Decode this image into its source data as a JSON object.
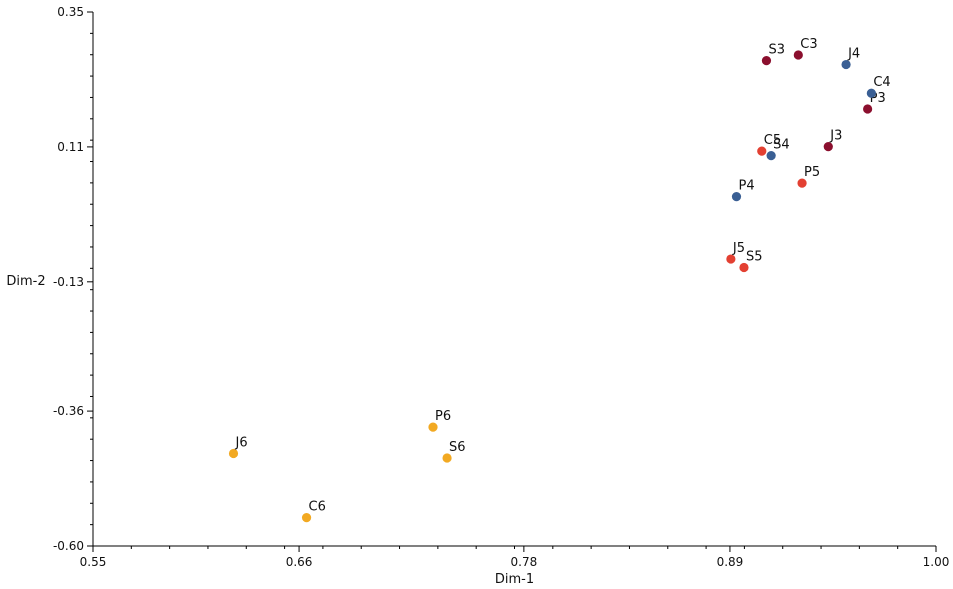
{
  "chart_data": {
    "type": "scatter",
    "title": "",
    "xlabel": "Dim-1",
    "ylabel": "Dim-2",
    "xlim": [
      0.55,
      1.0
    ],
    "ylim": [
      -0.6,
      0.35
    ],
    "x_ticks": [
      "0.55",
      "0.66",
      "0.78",
      "0.89",
      "1.00"
    ],
    "x_tick_values": [
      0.55,
      0.66,
      0.78,
      0.89,
      1.0
    ],
    "y_ticks": [
      "0.35",
      "0.11",
      "-0.13",
      "-0.36",
      "-0.60"
    ],
    "y_tick_values": [
      0.35,
      0.11,
      -0.13,
      -0.36,
      -0.6
    ],
    "colors": {
      "group3": "#8b0f2e",
      "group4": "#3a5f94",
      "group5": "#e34032",
      "group6": "#f2a922"
    },
    "points": [
      {
        "label": "S3",
        "x": 0.9095,
        "y": 0.2635,
        "group": "group3"
      },
      {
        "label": "C3",
        "x": 0.9265,
        "y": 0.2735,
        "group": "group3"
      },
      {
        "label": "J3",
        "x": 0.9425,
        "y": 0.1105,
        "group": "group3"
      },
      {
        "label": "P3",
        "x": 0.9635,
        "y": 0.1775,
        "group": "group3"
      },
      {
        "label": "J4",
        "x": 0.952,
        "y": 0.2565,
        "group": "group4"
      },
      {
        "label": "C4",
        "x": 0.9655,
        "y": 0.2055,
        "group": "group4"
      },
      {
        "label": "S4",
        "x": 0.912,
        "y": 0.0945,
        "group": "group4"
      },
      {
        "label": "P4",
        "x": 0.8935,
        "y": 0.0215,
        "group": "group4"
      },
      {
        "label": "C5",
        "x": 0.907,
        "y": 0.1025,
        "group": "group5"
      },
      {
        "label": "P5",
        "x": 0.9285,
        "y": 0.0455,
        "group": "group5"
      },
      {
        "label": "J5",
        "x": 0.8905,
        "y": -0.0895,
        "group": "group5"
      },
      {
        "label": "S5",
        "x": 0.8975,
        "y": -0.1045,
        "group": "group5"
      },
      {
        "label": "P6",
        "x": 0.7315,
        "y": -0.3885,
        "group": "group6"
      },
      {
        "label": "S6",
        "x": 0.739,
        "y": -0.4435,
        "group": "group6"
      },
      {
        "label": "J6",
        "x": 0.625,
        "y": -0.4355,
        "group": "group6"
      },
      {
        "label": "C6",
        "x": 0.664,
        "y": -0.5495,
        "group": "group6"
      }
    ]
  }
}
